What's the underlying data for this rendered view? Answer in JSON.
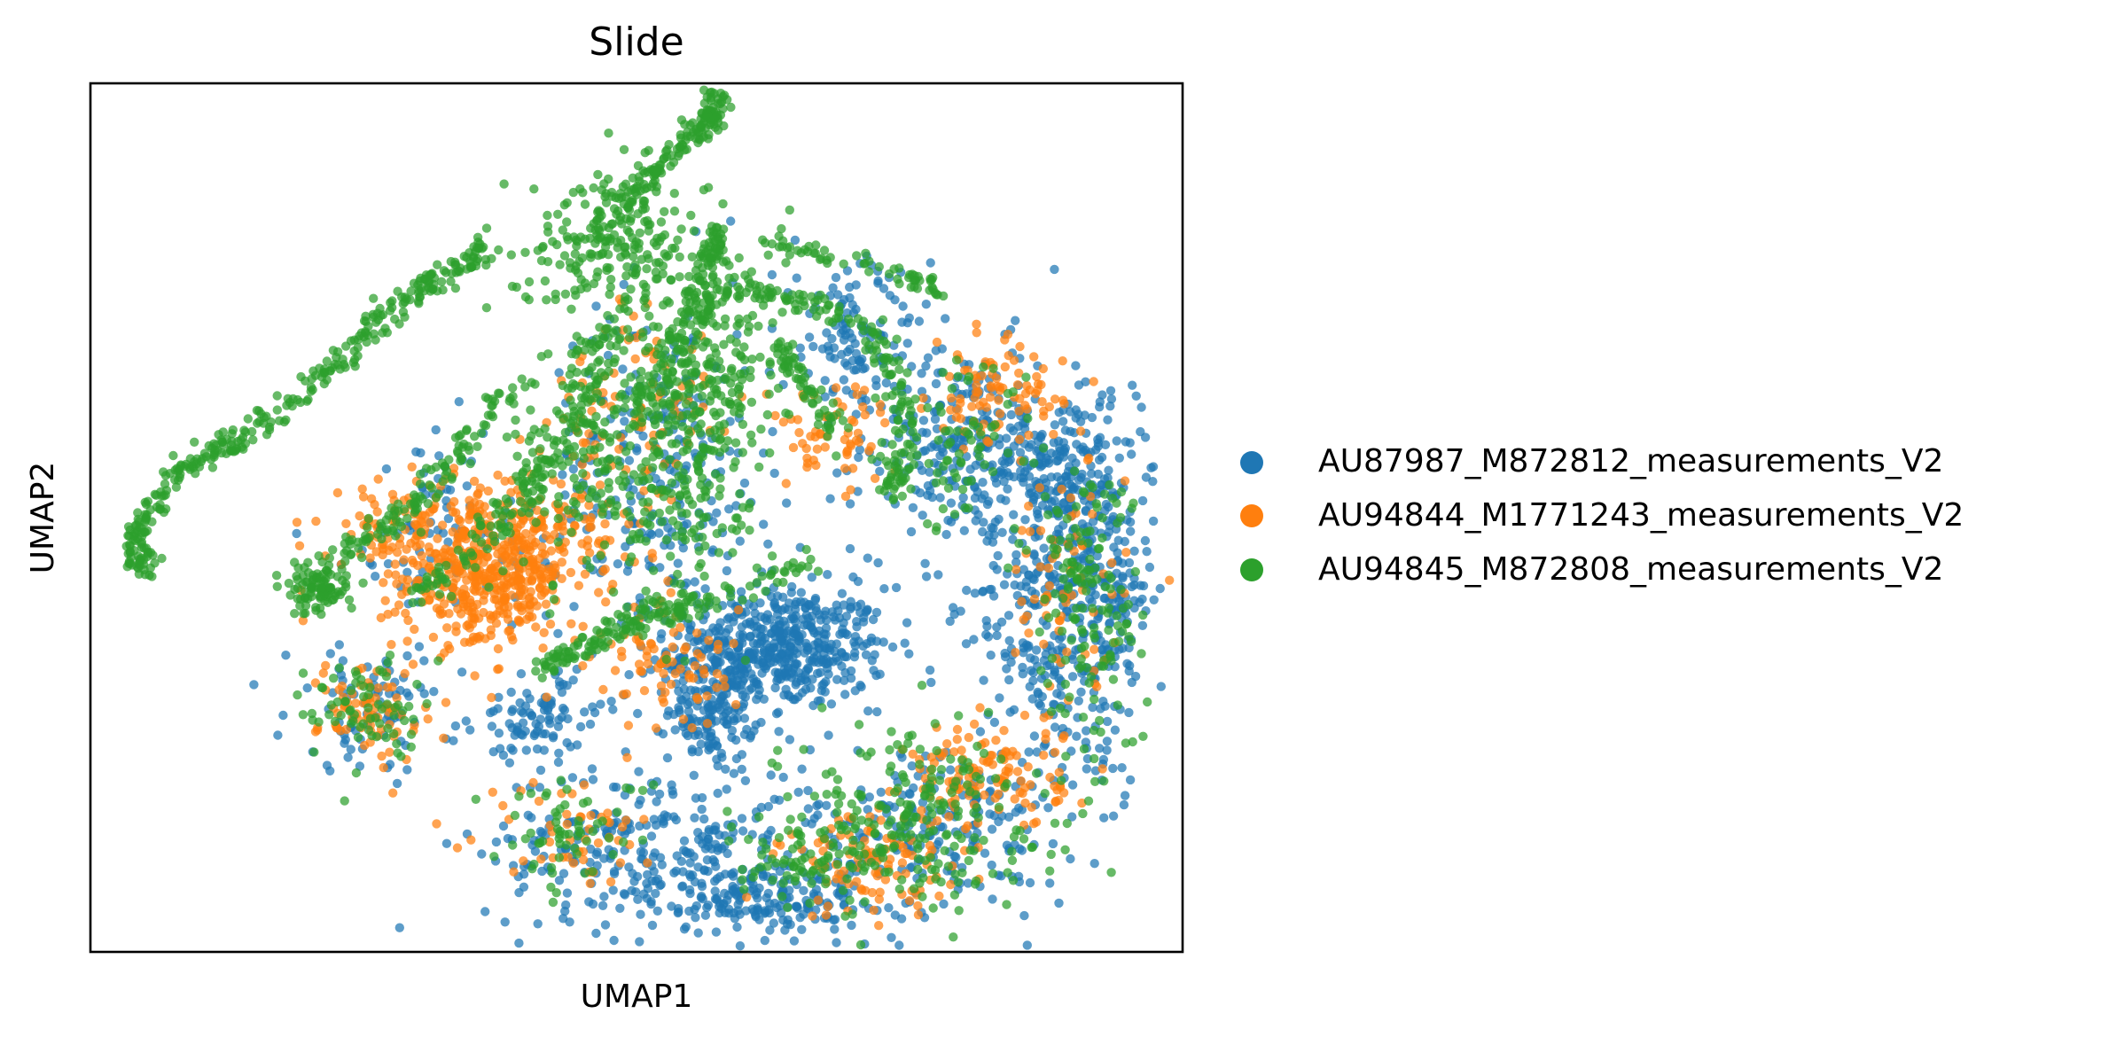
{
  "chart_data": {
    "type": "scatter",
    "title": "Slide",
    "xlabel": "UMAP1",
    "ylabel": "UMAP2",
    "xlim": [
      0,
      100
    ],
    "ylim": [
      0,
      100
    ],
    "grid": false,
    "ticks_visible": false,
    "legend_position": "right",
    "series": [
      {
        "name": "AU87987_M872812_measurements_V2",
        "color": "#1f77b4",
        "clusters": [
          {
            "x": 63,
            "y": 35,
            "sx": 5.0,
            "sy": 3.5,
            "n": 520
          },
          {
            "x": 57,
            "y": 28,
            "sx": 2.0,
            "sy": 3.0,
            "n": 140
          },
          {
            "x": 80,
            "y": 58,
            "sx": 5.0,
            "sy": 6.0,
            "n": 260
          },
          {
            "x": 87,
            "y": 41,
            "sx": 3.0,
            "sy": 10.0,
            "n": 260
          },
          {
            "x": 93,
            "y": 42,
            "sx": 2.2,
            "sy": 9.0,
            "n": 230
          },
          {
            "x": 52,
            "y": 12,
            "sx": 8.0,
            "sy": 5.0,
            "n": 300
          },
          {
            "x": 61,
            "y": 6,
            "sx": 5.0,
            "sy": 2.0,
            "n": 160
          },
          {
            "x": 78,
            "y": 14,
            "sx": 6.0,
            "sy": 5.0,
            "n": 220
          },
          {
            "x": 52,
            "y": 55,
            "sx": 5.0,
            "sy": 10.0,
            "n": 260
          },
          {
            "x": 70,
            "y": 70,
            "sx": 3.5,
            "sy": 5.0,
            "n": 120
          },
          {
            "x": 41,
            "y": 27,
            "sx": 3.0,
            "sy": 2.5,
            "n": 90
          },
          {
            "x": 26,
            "y": 28,
            "sx": 4.0,
            "sy": 3.5,
            "n": 80
          },
          {
            "x": 32,
            "y": 48,
            "sx": 6.0,
            "sy": 6.0,
            "n": 80
          },
          {
            "x": 90,
            "y": 55,
            "sx": 3.0,
            "sy": 4.0,
            "n": 120
          }
        ]
      },
      {
        "name": "AU94844_M1771243_measurements_V2",
        "color": "#ff7f0e",
        "clusters": [
          {
            "x": 36,
            "y": 43,
            "sx": 3.5,
            "sy": 4.0,
            "n": 360
          },
          {
            "x": 42,
            "y": 47,
            "sx": 3.0,
            "sy": 4.0,
            "n": 140
          },
          {
            "x": 29,
            "y": 48,
            "sx": 4.0,
            "sy": 4.0,
            "n": 120
          },
          {
            "x": 26,
            "y": 28,
            "sx": 2.5,
            "sy": 3.0,
            "n": 80
          },
          {
            "x": 53,
            "y": 33,
            "sx": 3.0,
            "sy": 4.0,
            "n": 80
          },
          {
            "x": 82,
            "y": 20,
            "sx": 3.5,
            "sy": 3.0,
            "n": 120
          },
          {
            "x": 72,
            "y": 10,
            "sx": 4.5,
            "sy": 3.0,
            "n": 100
          },
          {
            "x": 83,
            "y": 64,
            "sx": 3.0,
            "sy": 3.0,
            "n": 90
          },
          {
            "x": 89,
            "y": 40,
            "sx": 3.0,
            "sy": 8.0,
            "n": 80
          },
          {
            "x": 44,
            "y": 14,
            "sx": 4.0,
            "sy": 3.0,
            "n": 50
          },
          {
            "x": 50,
            "y": 60,
            "sx": 4.0,
            "sy": 8.0,
            "n": 100
          },
          {
            "x": 68,
            "y": 60,
            "sx": 3.0,
            "sy": 3.0,
            "n": 60
          }
        ]
      },
      {
        "name": "AU94845_M872808_measurements_V2",
        "color": "#2ca02c",
        "clusters": [
          {
            "x": 48,
            "y": 82,
            "sx": 4.0,
            "sy": 4.0,
            "n": 220
          },
          {
            "x": 54,
            "y": 58,
            "sx": 3.0,
            "sy": 9.0,
            "n": 240
          },
          {
            "x": 45,
            "y": 58,
            "sx": 3.5,
            "sy": 8.0,
            "n": 180
          },
          {
            "x": 58,
            "y": 68,
            "sx": 3.0,
            "sy": 8.0,
            "n": 160
          },
          {
            "x": 21,
            "y": 42,
            "sx": 1.6,
            "sy": 1.6,
            "n": 90
          },
          {
            "x": 25,
            "y": 28,
            "sx": 2.5,
            "sy": 3.0,
            "n": 70
          },
          {
            "x": 75,
            "y": 16,
            "sx": 6.0,
            "sy": 5.0,
            "n": 220
          },
          {
            "x": 91,
            "y": 40,
            "sx": 2.5,
            "sy": 9.0,
            "n": 150
          },
          {
            "x": 44,
            "y": 14,
            "sx": 3.5,
            "sy": 3.0,
            "n": 60
          },
          {
            "x": 65,
            "y": 11,
            "sx": 4.0,
            "sy": 3.0,
            "n": 70
          },
          {
            "x": 80,
            "y": 58,
            "sx": 4.0,
            "sy": 5.0,
            "n": 80
          }
        ],
        "curves": [
          {
            "points": [
              [
                5,
                44
              ],
              [
                4,
                46
              ],
              [
                5,
                50
              ],
              [
                8,
                55
              ],
              [
                12,
                58
              ],
              [
                16,
                61
              ],
              [
                22,
                67
              ],
              [
                26,
                72
              ],
              [
                30,
                76
              ],
              [
                34,
                79
              ],
              [
                36,
                81
              ]
            ],
            "n": 340,
            "spread": 0.7
          },
          {
            "points": [
              [
                48,
                86
              ],
              [
                52,
                90
              ],
              [
                55,
                94
              ],
              [
                57,
                96
              ],
              [
                57.5,
                99
              ]
            ],
            "n": 140,
            "spread": 0.6
          },
          {
            "points": [
              [
                30,
                41
              ],
              [
                34,
                45
              ],
              [
                38,
                50
              ],
              [
                41,
                55
              ],
              [
                44,
                60
              ],
              [
                46,
                67
              ],
              [
                47,
                72
              ]
            ],
            "n": 150,
            "spread": 0.9
          },
          {
            "points": [
              [
                42,
                33
              ],
              [
                48,
                37
              ],
              [
                54,
                39
              ],
              [
                60,
                42
              ],
              [
                66,
                45
              ]
            ],
            "n": 110,
            "spread": 0.7
          },
          {
            "points": [
              [
                50,
                63
              ],
              [
                53,
                68
              ],
              [
                55,
                74
              ],
              [
                57,
                80
              ],
              [
                58,
                84
              ]
            ],
            "n": 110,
            "spread": 0.6
          },
          {
            "points": [
              [
                55,
                74
              ],
              [
                60,
                76
              ],
              [
                66,
                75
              ],
              [
                71,
                72
              ],
              [
                74,
                66
              ],
              [
                75,
                58
              ],
              [
                73,
                52
              ]
            ],
            "n": 170,
            "spread": 0.7
          },
          {
            "points": [
              [
                62,
                82
              ],
              [
                68,
                80
              ],
              [
                74,
                78
              ],
              [
                78,
                76
              ]
            ],
            "n": 60,
            "spread": 0.6
          },
          {
            "points": [
              [
                41,
                32
              ],
              [
                45,
                35
              ],
              [
                50,
                39
              ],
              [
                55,
                41
              ]
            ],
            "n": 60,
            "spread": 0.6
          },
          {
            "points": [
              [
                63,
                70
              ],
              [
                66,
                65
              ],
              [
                68,
                60
              ]
            ],
            "n": 60,
            "spread": 0.6
          },
          {
            "points": [
              [
                20,
                42
              ],
              [
                23,
                46
              ],
              [
                27,
                49
              ],
              [
                31,
                53
              ],
              [
                35,
                60
              ],
              [
                40,
                66
              ]
            ],
            "n": 120,
            "spread": 0.8
          }
        ]
      }
    ]
  }
}
